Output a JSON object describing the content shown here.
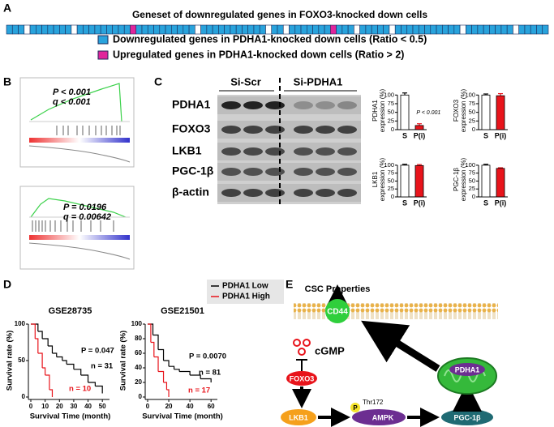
{
  "panel_labels": [
    "A",
    "B",
    "C",
    "D",
    "E"
  ],
  "panel_a": {
    "title": "Geneset of downregulated genes in FOXO3-knocked down cells",
    "legend": [
      "Downregulated genes in PDHA1-knocked down cells (Ratio < 0.5)",
      "Upregulated genes in PDHA1-knocked down cells (Ratio > 2)"
    ]
  },
  "panel_b": {
    "plots": [
      {
        "p": "P < 0.001",
        "q": "q < 0.001"
      },
      {
        "p": "P = 0.0196",
        "q": "q = 0.00642"
      }
    ]
  },
  "panel_c": {
    "groups": [
      "Si-Scr",
      "Si-PDHA1"
    ],
    "rows": [
      "PDHA1",
      "FOXO3",
      "LKB1",
      "PGC-1β",
      "β-actin"
    ]
  },
  "diagram": {
    "csc": "CSC Properties",
    "cd44": "CD44",
    "cgmp": "cGMP",
    "foxo3": "FOXO3",
    "lkb1": "LKB1",
    "p": "P",
    "thr": "Thr172",
    "ampk": "AMPK",
    "pgc": "PGC-1β",
    "pdha1": "PDHA1"
  },
  "chart_data": [
    {
      "type": "bar",
      "ylabel": [
        "PDHA1",
        "expression (%)"
      ],
      "categories": [
        "S",
        "P(i)"
      ],
      "values": [
        100,
        12
      ],
      "errors": [
        6,
        5
      ],
      "colors": [
        "#ffffff",
        "#e8141b"
      ],
      "ylim": [
        0,
        110
      ],
      "yticks": [
        0,
        25,
        50,
        75,
        100
      ],
      "annotation": "P < 0.001"
    },
    {
      "type": "bar",
      "ylabel": [
        "FOXO3",
        "expression (%)"
      ],
      "categories": [
        "S",
        "P(i)"
      ],
      "values": [
        100,
        98
      ],
      "errors": [
        3,
        6
      ],
      "colors": [
        "#ffffff",
        "#e8141b"
      ],
      "ylim": [
        0,
        110
      ],
      "yticks": [
        0,
        25,
        50,
        75,
        100
      ]
    },
    {
      "type": "bar",
      "ylabel": [
        "LKB1",
        "expression (%)"
      ],
      "categories": [
        "S",
        "P(i)"
      ],
      "values": [
        100,
        99
      ],
      "errors": [
        3,
        3
      ],
      "colors": [
        "#ffffff",
        "#e8141b"
      ],
      "ylim": [
        0,
        110
      ],
      "yticks": [
        0,
        25,
        50,
        75,
        100
      ]
    },
    {
      "type": "bar",
      "ylabel": [
        "PGC-1β",
        "expression (%)"
      ],
      "categories": [
        "S",
        "P(i)"
      ],
      "values": [
        100,
        90
      ],
      "errors": [
        3,
        2
      ],
      "colors": [
        "#ffffff",
        "#e8141b"
      ],
      "ylim": [
        0,
        110
      ],
      "yticks": [
        0,
        25,
        50,
        75,
        100
      ]
    },
    {
      "type": "line",
      "title": "GSE28735",
      "xlabel": "Survival Time (month)",
      "ylabel": "Survival rate (%)",
      "p_text": "P = 0.047",
      "series": [
        {
          "name": "PDHA1 Low",
          "color": "#000000",
          "label": "n = 31",
          "x": [
            0,
            5,
            8,
            12,
            15,
            18,
            22,
            25,
            30,
            35,
            40,
            45,
            50
          ],
          "values": [
            100,
            90,
            80,
            70,
            60,
            55,
            50,
            45,
            38,
            30,
            20,
            15,
            5
          ]
        },
        {
          "name": "PDHA1 High",
          "color": "#e8141b",
          "label": "n = 10",
          "x": [
            0,
            3,
            5,
            8,
            10,
            13,
            15
          ],
          "values": [
            100,
            80,
            60,
            40,
            30,
            10,
            0
          ]
        }
      ],
      "xlim": [
        0,
        55
      ],
      "xticks": [
        0,
        10,
        20,
        30,
        40,
        50
      ],
      "ylim": [
        0,
        100
      ],
      "yticks": [
        0,
        50,
        100
      ]
    },
    {
      "type": "line",
      "title": "GSE21501",
      "xlabel": "Survival Time (month)",
      "ylabel": "Survival rate (%)",
      "p_text": "P = 0.0070",
      "series": [
        {
          "color": "#000000",
          "label": "n = 81",
          "x": [
            0,
            5,
            10,
            15,
            20,
            25,
            30,
            40,
            50,
            60
          ],
          "values": [
            100,
            85,
            65,
            50,
            42,
            38,
            35,
            30,
            25,
            20
          ]
        },
        {
          "color": "#e8141b",
          "label": "n = 17",
          "x": [
            0,
            3,
            6,
            10,
            15,
            18,
            20
          ],
          "values": [
            100,
            75,
            55,
            35,
            20,
            10,
            0
          ]
        }
      ],
      "xlim": [
        0,
        66
      ],
      "xticks": [
        0,
        20,
        40,
        60
      ],
      "ylim": [
        0,
        100
      ],
      "yticks": [
        0,
        20,
        40,
        60,
        80,
        100
      ]
    }
  ]
}
